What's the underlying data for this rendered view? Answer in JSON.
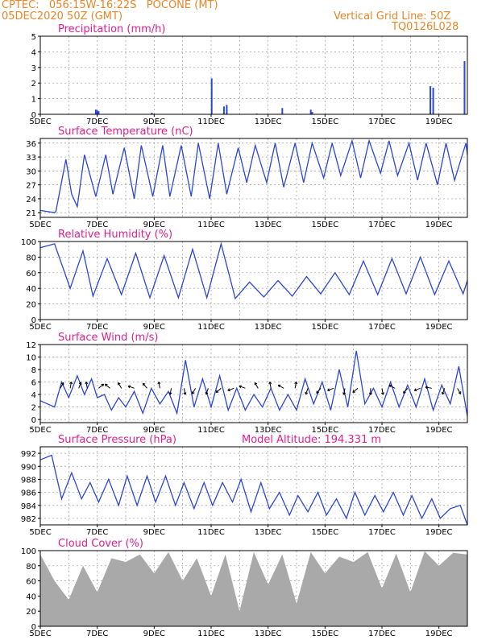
{
  "header": {
    "left1": "CPTEC:   056:15W-16:22S   POCONE (MT)",
    "left2": "05DEC2020 50Z (GMT)",
    "right1": "Vertical Grid Line: 50Z",
    "right2": "TQ0126L028"
  },
  "colors": {
    "line": "#2b46d8",
    "cloud": "#a9a9a9",
    "title": "#e0208c",
    "header": "#e8862a"
  },
  "chart_data": [
    {
      "type": "bar",
      "title": "Precipitation (mm/h)",
      "x_ticks": [
        "5DEC",
        "7DEC",
        "9DEC",
        "11DEC",
        "13DEC",
        "15DEC",
        "17DEC",
        "19DEC"
      ],
      "ylim": [
        0,
        5
      ],
      "y_ticks": [
        0,
        1,
        2,
        3,
        4,
        5
      ],
      "grid": true,
      "x_days": [
        1.95,
        2.0,
        2.05,
        3.92,
        6.02,
        6.45,
        6.55,
        7.6,
        8.5,
        9.5,
        9.55,
        13.7,
        13.8,
        14.9
      ],
      "values": [
        0.3,
        0.25,
        0.2,
        0.1,
        2.3,
        0.5,
        0.6,
        0.05,
        0.4,
        0.3,
        0.15,
        1.8,
        1.7,
        3.4
      ]
    },
    {
      "type": "line",
      "title": "Surface Temperature (nC)",
      "x_ticks": [
        "5DEC",
        "7DEC",
        "9DEC",
        "11DEC",
        "13DEC",
        "15DEC",
        "17DEC",
        "19DEC"
      ],
      "ylim": [
        20,
        37
      ],
      "y_ticks": [
        21,
        24,
        27,
        30,
        33,
        36
      ],
      "grid": true,
      "x_days": [
        0.0,
        0.5,
        0.55,
        0.9,
        1.1,
        1.3,
        1.55,
        1.95,
        2.3,
        2.55,
        2.95,
        3.3,
        3.55,
        3.95,
        4.3,
        4.55,
        4.95,
        5.3,
        5.55,
        5.95,
        6.25,
        6.55,
        6.95,
        7.25,
        7.55,
        7.95,
        8.25,
        8.55,
        8.95,
        9.25,
        9.55,
        9.95,
        10.25,
        10.55,
        10.95,
        11.25,
        11.55,
        11.95,
        12.25,
        12.55,
        12.95,
        13.25,
        13.55,
        13.95,
        14.25,
        14.55,
        14.95,
        15.0
      ],
      "values": [
        21.5,
        21.0,
        21.3,
        32.5,
        25.0,
        22.3,
        33.5,
        24.5,
        33.5,
        25.0,
        35.0,
        24.0,
        35.5,
        24.5,
        35.5,
        24.5,
        35.5,
        24.5,
        36.0,
        24.0,
        36.0,
        25.0,
        35.0,
        27.5,
        35.5,
        27.5,
        36.0,
        26.5,
        36.0,
        27.5,
        36.0,
        28.5,
        36.0,
        29.0,
        36.5,
        28.5,
        36.5,
        29.5,
        36.5,
        29.0,
        36.0,
        28.0,
        36.0,
        27.0,
        36.0,
        28.0,
        36.0,
        33.5
      ]
    },
    {
      "type": "line",
      "title": "Relative Humidity (%)",
      "x_ticks": [
        "5DEC",
        "7DEC",
        "9DEC",
        "11DEC",
        "13DEC",
        "15DEC",
        "17DEC",
        "19DEC"
      ],
      "ylim": [
        0,
        100
      ],
      "y_ticks": [
        0,
        20,
        40,
        60,
        80,
        100
      ],
      "grid": true,
      "x_days": [
        0.0,
        0.5,
        1.05,
        1.5,
        1.85,
        2.35,
        2.85,
        3.35,
        3.85,
        4.35,
        4.85,
        5.35,
        5.85,
        6.35,
        6.85,
        7.35,
        7.85,
        8.35,
        8.85,
        9.35,
        9.85,
        10.35,
        10.85,
        11.35,
        11.85,
        12.35,
        12.85,
        13.35,
        13.85,
        14.35,
        14.85,
        15.0
      ],
      "values": [
        92,
        97,
        40,
        88,
        30,
        78,
        32,
        85,
        28,
        82,
        28,
        90,
        28,
        97,
        27,
        48,
        29,
        50,
        30,
        55,
        33,
        60,
        32,
        75,
        32,
        78,
        33,
        80,
        32,
        75,
        33,
        50
      ]
    },
    {
      "type": "line",
      "title": "Surface Wind (m/s)",
      "x_ticks": [
        "5DEC",
        "7DEC",
        "9DEC",
        "11DEC",
        "13DEC",
        "15DEC",
        "17DEC",
        "19DEC"
      ],
      "ylim": [
        -0.5,
        12
      ],
      "y_ticks": [
        0,
        2,
        4,
        6,
        8,
        10,
        12
      ],
      "grid": true,
      "x_days": [
        0.0,
        0.5,
        0.75,
        1.0,
        1.3,
        1.55,
        1.8,
        2.0,
        2.25,
        2.5,
        2.75,
        3.0,
        3.3,
        3.6,
        3.9,
        4.2,
        4.5,
        4.8,
        5.1,
        5.4,
        5.7,
        6.0,
        6.3,
        6.6,
        6.9,
        7.2,
        7.5,
        7.8,
        8.1,
        8.4,
        8.7,
        9.0,
        9.3,
        9.6,
        9.9,
        10.2,
        10.5,
        10.8,
        11.1,
        11.4,
        11.7,
        12.0,
        12.3,
        12.6,
        12.9,
        13.2,
        13.5,
        13.8,
        14.1,
        14.4,
        14.7,
        15.0
      ],
      "values": [
        3.0,
        2.0,
        6.0,
        3.5,
        7.0,
        4.0,
        6.5,
        3.5,
        4.0,
        1.5,
        3.5,
        2.0,
        4.5,
        1.0,
        5.0,
        2.5,
        4.5,
        1.0,
        9.5,
        2.0,
        6.5,
        2.0,
        7.0,
        1.5,
        5.0,
        1.5,
        4.0,
        2.0,
        5.0,
        1.5,
        4.0,
        1.5,
        6.5,
        2.5,
        6.0,
        1.5,
        8.0,
        2.0,
        11.0,
        2.5,
        5.0,
        2.0,
        6.0,
        2.0,
        5.5,
        2.0,
        6.5,
        1.5,
        5.5,
        2.5,
        8.5,
        0.5
      ],
      "arrows_x_days": [
        0.7,
        1.05,
        1.35,
        1.65,
        2.05,
        2.45,
        2.85,
        3.3,
        3.75,
        4.2,
        4.6,
        5.05,
        5.45,
        5.9,
        6.35,
        6.8,
        7.2,
        7.65,
        8.1,
        8.55,
        8.95,
        9.4,
        9.85,
        10.3,
        10.7,
        11.15,
        11.6,
        12.0,
        12.45,
        12.9,
        13.35,
        13.75,
        14.2,
        14.65
      ],
      "arrows_dir_deg": [
        60,
        80,
        70,
        100,
        40,
        140,
        120,
        160,
        130,
        100,
        260,
        280,
        240,
        250,
        220,
        200,
        160,
        120,
        100,
        150,
        80,
        250,
        230,
        200,
        260,
        220,
        270,
        280,
        150,
        230,
        200,
        170,
        250,
        300
      ]
    },
    {
      "type": "line",
      "title": "Surface Pressure (hPa)",
      "annotation": "Model Altitude: 194.331 m",
      "x_ticks": [
        "5DEC",
        "7DEC",
        "9DEC",
        "11DEC",
        "13DEC",
        "15DEC",
        "17DEC",
        "19DEC"
      ],
      "ylim": [
        981,
        993
      ],
      "y_ticks": [
        982,
        984,
        986,
        988,
        990,
        992
      ],
      "grid": true,
      "x_days": [
        0.0,
        0.4,
        0.75,
        1.1,
        1.45,
        1.75,
        2.05,
        2.4,
        2.75,
        3.05,
        3.4,
        3.75,
        4.05,
        4.4,
        4.75,
        5.05,
        5.4,
        5.75,
        6.05,
        6.4,
        6.75,
        7.05,
        7.4,
        7.75,
        8.05,
        8.4,
        8.75,
        9.05,
        9.4,
        9.75,
        10.05,
        10.4,
        10.75,
        11.05,
        11.4,
        11.75,
        12.05,
        12.4,
        12.75,
        13.05,
        13.4,
        13.75,
        14.05,
        14.4,
        14.75,
        15.0
      ],
      "values": [
        991.0,
        991.7,
        985.0,
        989.0,
        985.0,
        987.5,
        984.5,
        988.0,
        984.0,
        988.5,
        984.0,
        988.5,
        984.5,
        988.5,
        984.0,
        987.5,
        983.5,
        987.5,
        984.0,
        987.5,
        984.5,
        988.0,
        983.0,
        987.5,
        983.5,
        986.0,
        982.5,
        985.5,
        983.0,
        986.0,
        982.5,
        985.0,
        982.0,
        986.0,
        982.5,
        985.5,
        983.0,
        986.0,
        982.5,
        985.5,
        982.0,
        985.0,
        982.0,
        983.5,
        984.0,
        981.0
      ]
    },
    {
      "type": "bar",
      "title": "Cloud Cover (%)",
      "x_ticks": [
        "5DEC",
        "7DEC",
        "9DEC",
        "11DEC",
        "13DEC",
        "15DEC",
        "17DEC",
        "19DEC"
      ],
      "ylim": [
        0,
        100
      ],
      "y_ticks": [
        0,
        20,
        40,
        60,
        80,
        100
      ],
      "grid": true,
      "x_days": [
        0.0,
        0.5,
        1.0,
        1.5,
        2.0,
        2.5,
        3.0,
        3.5,
        4.0,
        4.5,
        5.0,
        5.5,
        6.0,
        6.5,
        7.0,
        7.5,
        8.0,
        8.5,
        9.0,
        9.5,
        10.0,
        10.5,
        11.0,
        11.5,
        12.0,
        12.5,
        13.0,
        13.5,
        14.0,
        14.5,
        15.0
      ],
      "values": [
        95,
        60,
        35,
        80,
        45,
        90,
        85,
        95,
        70,
        98,
        60,
        90,
        40,
        95,
        20,
        98,
        55,
        95,
        30,
        98,
        70,
        92,
        85,
        98,
        50,
        96,
        45,
        99,
        80,
        97,
        95
      ]
    }
  ]
}
